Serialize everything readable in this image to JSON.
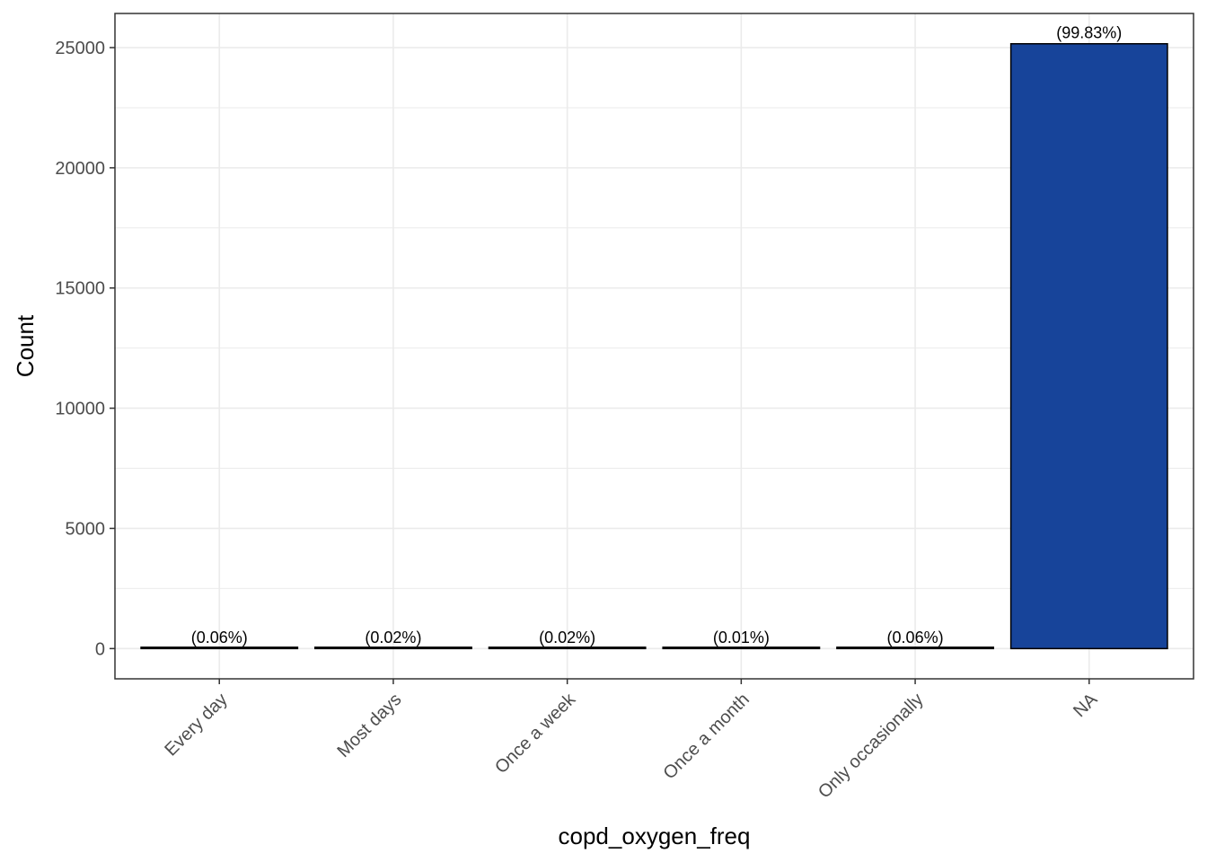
{
  "chart_data": {
    "type": "bar",
    "categories": [
      "Every day",
      "Most days",
      "Once a week",
      "Once a month",
      "Only occasionally",
      "NA"
    ],
    "values": [
      15,
      5,
      5,
      3,
      15,
      25160
    ],
    "data_labels": [
      "(0.06%)",
      "(0.02%)",
      "(0.02%)",
      "(0.01%)",
      "(0.06%)",
      "(99.83%)"
    ],
    "title": "",
    "xlabel": "copd_oxygen_freq",
    "ylabel": "Count",
    "ylim": [
      -1258,
      26420
    ],
    "y_ticks": [
      0,
      5000,
      10000,
      15000,
      20000,
      25000
    ],
    "y_tick_labels": [
      "0",
      "5000",
      "10000",
      "15000",
      "20000",
      "25000"
    ],
    "grid": true,
    "legend": "none",
    "bar_color": "#17449A",
    "bar_outline": "#000000",
    "grid_color": "#EBEBEB",
    "panel_border": "#333333"
  }
}
